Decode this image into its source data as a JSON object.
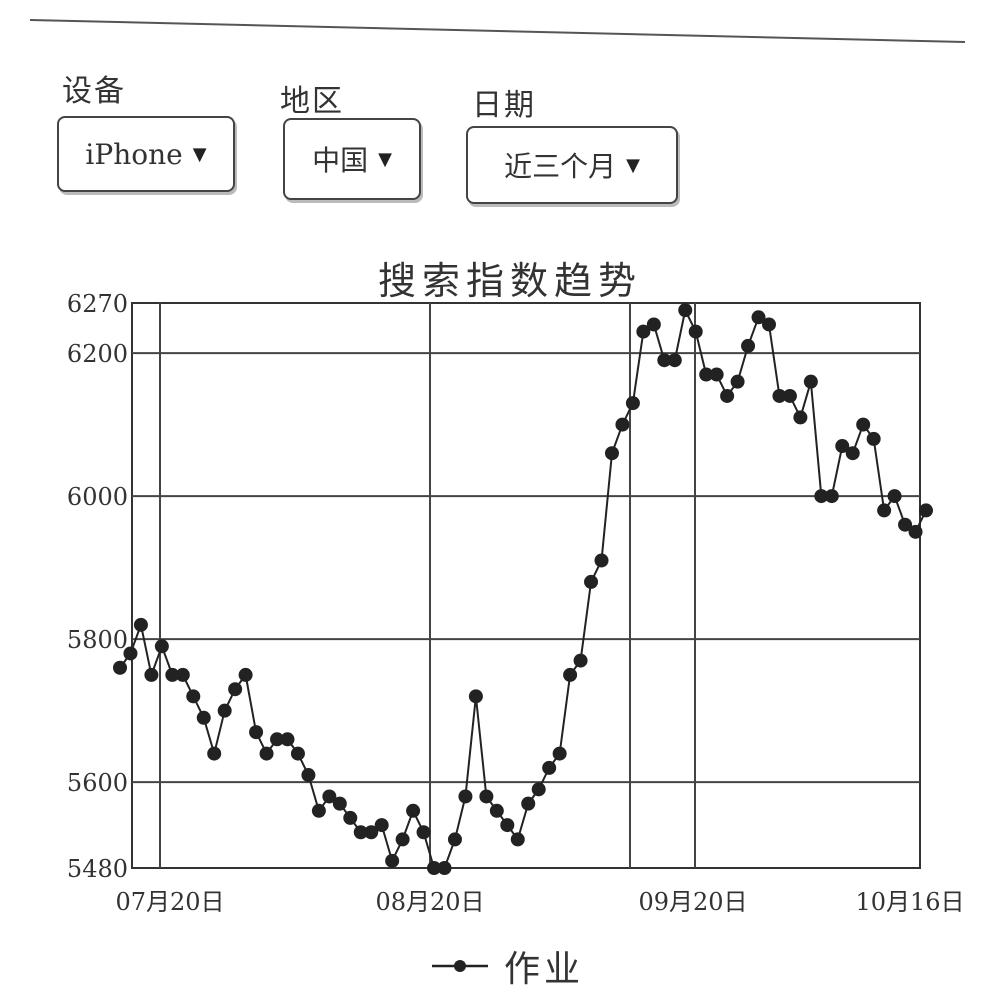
{
  "filters": {
    "device": {
      "label": "设备",
      "value": "iPhone"
    },
    "region": {
      "label": "地区",
      "value": "中国"
    },
    "date": {
      "label": "日期",
      "value": "近三个月"
    }
  },
  "chart_data": {
    "type": "line",
    "title": "搜索指数趋势",
    "xlabel": "",
    "ylabel": "",
    "ylim": [
      5480,
      6270
    ],
    "yticks": [
      5480,
      5600,
      5800,
      6000,
      6200,
      6270
    ],
    "xticks": [
      "07月20日",
      "08月20日",
      "09月20日",
      "10月16日"
    ],
    "grid": true,
    "legend": "bottom",
    "series": [
      {
        "name": "作业",
        "color": "#222222",
        "values": [
          5760,
          5780,
          5820,
          5750,
          5790,
          5750,
          5750,
          5720,
          5690,
          5640,
          5700,
          5730,
          5750,
          5670,
          5640,
          5660,
          5660,
          5640,
          5610,
          5560,
          5580,
          5570,
          5550,
          5530,
          5530,
          5540,
          5490,
          5520,
          5560,
          5530,
          5480,
          5480,
          5520,
          5580,
          5720,
          5580,
          5560,
          5540,
          5520,
          5570,
          5590,
          5620,
          5640,
          5750,
          5770,
          5880,
          5910,
          6060,
          6100,
          6130,
          6230,
          6240,
          6190,
          6190,
          6260,
          6230,
          6170,
          6170,
          6140,
          6160,
          6210,
          6250,
          6240,
          6140,
          6140,
          6110,
          6160,
          6000,
          6000,
          6070,
          6060,
          6100,
          6080,
          5980,
          6000,
          5960,
          5950,
          5980
        ]
      }
    ]
  }
}
